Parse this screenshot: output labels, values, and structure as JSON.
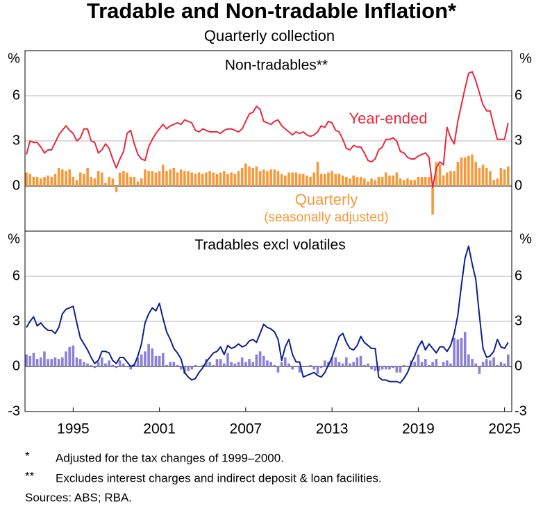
{
  "header": {
    "title": "Tradable and Non-tradable Inflation*",
    "subtitle": "Quarterly collection"
  },
  "notes": [
    {
      "mark": "*",
      "text": "Adjusted for the tax changes of 1999–2000."
    },
    {
      "mark": "**",
      "text": "Excludes interest charges and indirect deposit & loan facilities."
    }
  ],
  "sources": "Sources: ABS; RBA.",
  "chart_data": [
    {
      "type": "combo",
      "panel_title": "Non-tradables**",
      "unit": "%",
      "xlim": [
        1992.15,
        2026
      ],
      "ylim": [
        -3,
        9
      ],
      "yticks": [
        0,
        3,
        6
      ],
      "grid": true,
      "x": [
        1992.25,
        1992.5,
        1992.75,
        1993,
        1993.25,
        1993.5,
        1993.75,
        1994,
        1994.25,
        1994.5,
        1994.75,
        1995,
        1995.25,
        1995.5,
        1995.75,
        1996,
        1996.25,
        1996.5,
        1996.75,
        1997,
        1997.25,
        1997.5,
        1997.75,
        1998,
        1998.25,
        1998.5,
        1998.75,
        1999,
        1999.25,
        1999.5,
        1999.75,
        2000,
        2000.25,
        2000.5,
        2000.75,
        2001,
        2001.25,
        2001.5,
        2001.75,
        2002,
        2002.25,
        2002.5,
        2002.75,
        2003,
        2003.25,
        2003.5,
        2003.75,
        2004,
        2004.25,
        2004.5,
        2004.75,
        2005,
        2005.25,
        2005.5,
        2005.75,
        2006,
        2006.25,
        2006.5,
        2006.75,
        2007,
        2007.25,
        2007.5,
        2007.75,
        2008,
        2008.25,
        2008.5,
        2008.75,
        2009,
        2009.25,
        2009.5,
        2009.75,
        2010,
        2010.25,
        2010.5,
        2010.75,
        2011,
        2011.25,
        2011.5,
        2011.75,
        2012,
        2012.25,
        2012.5,
        2012.75,
        2013,
        2013.25,
        2013.5,
        2013.75,
        2014,
        2014.25,
        2014.5,
        2014.75,
        2015,
        2015.25,
        2015.5,
        2015.75,
        2016,
        2016.25,
        2016.5,
        2016.75,
        2017,
        2017.25,
        2017.5,
        2017.75,
        2018,
        2018.25,
        2018.5,
        2018.75,
        2019,
        2019.25,
        2019.5,
        2019.75,
        2020,
        2020.25,
        2020.5,
        2020.75,
        2021,
        2021.25,
        2021.5,
        2021.75,
        2022,
        2022.25,
        2022.5,
        2022.75,
        2023,
        2023.25,
        2023.5,
        2023.75,
        2024,
        2024.25,
        2024.5,
        2024.75,
        2025,
        2025.25,
        2025.5,
        2025.75
      ],
      "series": [
        {
          "name": "Quarterly",
          "name_note": "(seasonally adjusted)",
          "mark": "bar",
          "color": "#f5993a",
          "values": [
            0.9,
            0.8,
            0.6,
            0.6,
            0.5,
            0.6,
            0.7,
            0.6,
            0.8,
            1.2,
            1.1,
            1.0,
            1.1,
            0.6,
            0.4,
            0.9,
            0.8,
            1.2,
            0.6,
            0.5,
            1.0,
            0.9,
            0.2,
            0.6,
            0.5,
            -0.4,
            0.9,
            1.0,
            0.9,
            0.6,
            0.6,
            0.3,
            0.5,
            1.1,
            1.0,
            1.0,
            0.9,
            1.0,
            1.4,
            1.0,
            1.1,
            1.2,
            0.9,
            1.1,
            1.0,
            1.0,
            0.9,
            0.8,
            0.9,
            0.8,
            0.9,
            1.0,
            0.9,
            0.8,
            0.9,
            1.0,
            0.8,
            0.9,
            0.8,
            1.0,
            1.2,
            1.5,
            1.3,
            1.2,
            1.3,
            1.0,
            1.1,
            1.0,
            1.1,
            1.1,
            1.0,
            0.8,
            0.7,
            0.9,
            0.9,
            0.9,
            0.8,
            0.8,
            0.7,
            0.6,
            0.9,
            1.6,
            0.8,
            0.8,
            0.9,
            1.0,
            0.8,
            0.8,
            0.7,
            0.6,
            0.5,
            0.7,
            0.6,
            0.6,
            0.5,
            0.3,
            0.5,
            0.4,
            0.6,
            0.6,
            0.9,
            0.7,
            0.7,
            0.9,
            0.5,
            0.4,
            0.5,
            0.4,
            0.4,
            0.6,
            0.6,
            0.6,
            0.6,
            -1.9,
            1.6,
            1.4,
            0.7,
            0.9,
            1.0,
            1.0,
            1.6,
            1.9,
            1.9,
            2.0,
            2.1,
            1.6,
            1.2,
            1.4,
            1.2,
            1.0,
            0.4,
            0.5,
            1.2,
            1.1,
            1.3
          ]
        },
        {
          "name": "Year-ended",
          "mark": "line",
          "color": "#e8293b",
          "values": [
            2.1,
            3.0,
            2.9,
            2.9,
            2.6,
            2.2,
            2.4,
            2.4,
            2.9,
            3.4,
            3.7,
            4.0,
            3.7,
            3.5,
            3.0,
            3.2,
            3.8,
            3.8,
            3.0,
            2.9,
            2.2,
            2.4,
            2.8,
            2.5,
            1.8,
            1.2,
            1.8,
            2.3,
            3.5,
            3.7,
            2.8,
            2.1,
            1.8,
            1.7,
            2.6,
            3.1,
            3.5,
            3.8,
            4.1,
            3.8,
            4.0,
            4.1,
            4.2,
            4.1,
            4.4,
            4.3,
            4.2,
            3.7,
            3.6,
            3.8,
            3.7,
            3.6,
            3.6,
            3.6,
            3.5,
            3.7,
            3.8,
            3.8,
            3.7,
            3.6,
            3.8,
            4.3,
            4.8,
            4.9,
            5.3,
            5.1,
            4.3,
            4.2,
            4.1,
            4.3,
            4.4,
            4.0,
            3.8,
            3.6,
            3.4,
            3.6,
            3.5,
            3.6,
            3.4,
            3.3,
            3.4,
            3.6,
            4.0,
            3.9,
            4.3,
            4.2,
            3.7,
            3.6,
            3.1,
            2.5,
            2.4,
            2.7,
            2.6,
            2.6,
            2.2,
            1.7,
            1.6,
            1.8,
            2.4,
            2.6,
            3.1,
            3.1,
            3.2,
            3.0,
            2.3,
            2.2,
            1.9,
            1.8,
            1.8,
            2.0,
            2.1,
            2.2,
            1.9,
            -0.1,
            1.2,
            1.6,
            1.4,
            3.9,
            3.2,
            2.8,
            4.3,
            5.4,
            6.5,
            7.5,
            7.6,
            7.0,
            6.2,
            5.4,
            5.0,
            5.0,
            4.0,
            3.1,
            3.1,
            3.1,
            4.2
          ]
        }
      ]
    },
    {
      "type": "combo",
      "panel_title": "Tradables excl volatiles",
      "unit": "%",
      "xlim": [
        1992.15,
        2026
      ],
      "ylim": [
        -3,
        9
      ],
      "yticks": [
        -3,
        0,
        3,
        6
      ],
      "grid": true,
      "xticks": [
        {
          "value": 1995.5,
          "label": "1995"
        },
        {
          "value": 2001.5,
          "label": "2001"
        },
        {
          "value": 2007.5,
          "label": "2007"
        },
        {
          "value": 2013.5,
          "label": "2013"
        },
        {
          "value": 2019.5,
          "label": "2019"
        },
        {
          "value": 2025.5,
          "label": "2025"
        }
      ],
      "x": [
        1992.25,
        1992.5,
        1992.75,
        1993,
        1993.25,
        1993.5,
        1993.75,
        1994,
        1994.25,
        1994.5,
        1994.75,
        1995,
        1995.25,
        1995.5,
        1995.75,
        1996,
        1996.25,
        1996.5,
        1996.75,
        1997,
        1997.25,
        1997.5,
        1997.75,
        1998,
        1998.25,
        1998.5,
        1998.75,
        1999,
        1999.25,
        1999.5,
        1999.75,
        2000,
        2000.25,
        2000.5,
        2000.75,
        2001,
        2001.25,
        2001.5,
        2001.75,
        2002,
        2002.25,
        2002.5,
        2002.75,
        2003,
        2003.25,
        2003.5,
        2003.75,
        2004,
        2004.25,
        2004.5,
        2004.75,
        2005,
        2005.25,
        2005.5,
        2005.75,
        2006,
        2006.25,
        2006.5,
        2006.75,
        2007,
        2007.25,
        2007.5,
        2007.75,
        2008,
        2008.25,
        2008.5,
        2008.75,
        2009,
        2009.25,
        2009.5,
        2009.75,
        2010,
        2010.25,
        2010.5,
        2010.75,
        2011,
        2011.25,
        2011.5,
        2011.75,
        2012,
        2012.25,
        2012.5,
        2012.75,
        2013,
        2013.25,
        2013.5,
        2013.75,
        2014,
        2014.25,
        2014.5,
        2014.75,
        2015,
        2015.25,
        2015.5,
        2015.75,
        2016,
        2016.25,
        2016.5,
        2016.75,
        2017,
        2017.25,
        2017.5,
        2017.75,
        2018,
        2018.25,
        2018.5,
        2018.75,
        2019,
        2019.25,
        2019.5,
        2019.75,
        2020,
        2020.25,
        2020.5,
        2020.75,
        2021,
        2021.25,
        2021.5,
        2021.75,
        2022,
        2022.25,
        2022.5,
        2022.75,
        2023,
        2023.25,
        2023.5,
        2023.75,
        2024,
        2024.25,
        2024.5,
        2024.75,
        2025,
        2025.25,
        2025.5,
        2025.75
      ],
      "series": [
        {
          "mark": "bar",
          "color": "#8a80d8",
          "values": [
            0.8,
            0.7,
            0.9,
            0.5,
            0.6,
            1.0,
            0.5,
            0.5,
            0.6,
            0.5,
            0.6,
            1.0,
            1.3,
            1.4,
            0.6,
            0.5,
            0.3,
            0.2,
            0.1,
            -0.1,
            0.3,
            0.6,
            0.2,
            0.4,
            0.1,
            -0.1,
            0.4,
            0.2,
            0.0,
            -0.2,
            0.2,
            0.6,
            0.8,
            1.0,
            1.5,
            1.2,
            0.7,
            0.7,
            0.9,
            0.1,
            0.3,
            0.3,
            0.1,
            -0.2,
            -0.5,
            -0.3,
            -0.2,
            0.1,
            0.0,
            0.1,
            0.5,
            0.3,
            0.1,
            0.5,
            0.5,
            0.2,
            0.9,
            0.3,
            0.2,
            0.3,
            0.6,
            0.3,
            0.5,
            0.3,
            0.8,
            1.0,
            0.7,
            0.4,
            0.3,
            0.1,
            -0.4,
            0.3,
            0.6,
            0.2,
            -0.2,
            0.0,
            -0.4,
            0.0,
            0.0,
            0.1,
            -0.2,
            -0.5,
            -0.1,
            0.4,
            0.3,
            0.6,
            0.6,
            0.3,
            0.2,
            0.6,
            0.2,
            0.3,
            0.6,
            0.7,
            0.1,
            0.2,
            -0.2,
            -0.3,
            -0.3,
            -0.2,
            -0.2,
            -0.2,
            -0.1,
            -0.4,
            -0.4,
            0.1,
            0.0,
            0.4,
            0.3,
            0.8,
            0.3,
            0.5,
            0.1,
            0.3,
            0.5,
            0.0,
            0.3,
            0.4,
            0.2,
            1.9,
            1.8,
            1.9,
            2.3,
            0.8,
            0.5,
            0.2,
            -0.5,
            0.3,
            0.5,
            0.4,
            0.6,
            0.1,
            0.3,
            0.2,
            0.8
          ]
        },
        {
          "mark": "line",
          "color": "#0b1f91",
          "values": [
            2.6,
            3.0,
            3.3,
            2.7,
            2.9,
            2.6,
            2.4,
            2.4,
            2.2,
            2.6,
            3.5,
            3.8,
            3.9,
            4.0,
            2.9,
            1.9,
            1.5,
            1.1,
            0.6,
            0.2,
            0.4,
            1.0,
            1.0,
            0.9,
            0.4,
            0.2,
            0.6,
            0.6,
            0.3,
            0.0,
            0.1,
            0.7,
            1.5,
            2.9,
            3.5,
            3.9,
            3.7,
            4.2,
            3.2,
            2.3,
            1.8,
            1.2,
            0.9,
            0.5,
            -0.4,
            -0.7,
            -0.9,
            -0.8,
            -0.4,
            -0.1,
            0.3,
            0.6,
            0.9,
            1.0,
            1.3,
            0.8,
            1.4,
            1.2,
            1.3,
            1.5,
            1.3,
            1.4,
            1.7,
            1.8,
            1.6,
            2.2,
            2.8,
            2.6,
            2.5,
            2.3,
            1.8,
            0.4,
            1.3,
            1.8,
            0.8,
            0.3,
            0.3,
            -0.7,
            -0.6,
            -0.5,
            -0.4,
            -0.6,
            -0.7,
            -0.4,
            0.1,
            0.6,
            1.3,
            2.0,
            2.2,
            1.6,
            1.2,
            1.1,
            1.4,
            2.0,
            1.6,
            1.4,
            1.2,
            1.2,
            -0.7,
            -0.9,
            -0.9,
            -1.0,
            -1.0,
            -1.0,
            -1.1,
            -0.8,
            -0.4,
            0.2,
            0.7,
            1.3,
            1.7,
            1.1,
            1.5,
            1.2,
            0.9,
            1.3,
            1.3,
            1.0,
            1.4,
            2.2,
            3.4,
            5.4,
            7.2,
            8.0,
            6.8,
            5.8,
            3.4,
            1.2,
            0.6,
            0.7,
            1.0,
            1.8,
            1.3,
            1.2,
            1.6
          ]
        }
      ]
    }
  ]
}
